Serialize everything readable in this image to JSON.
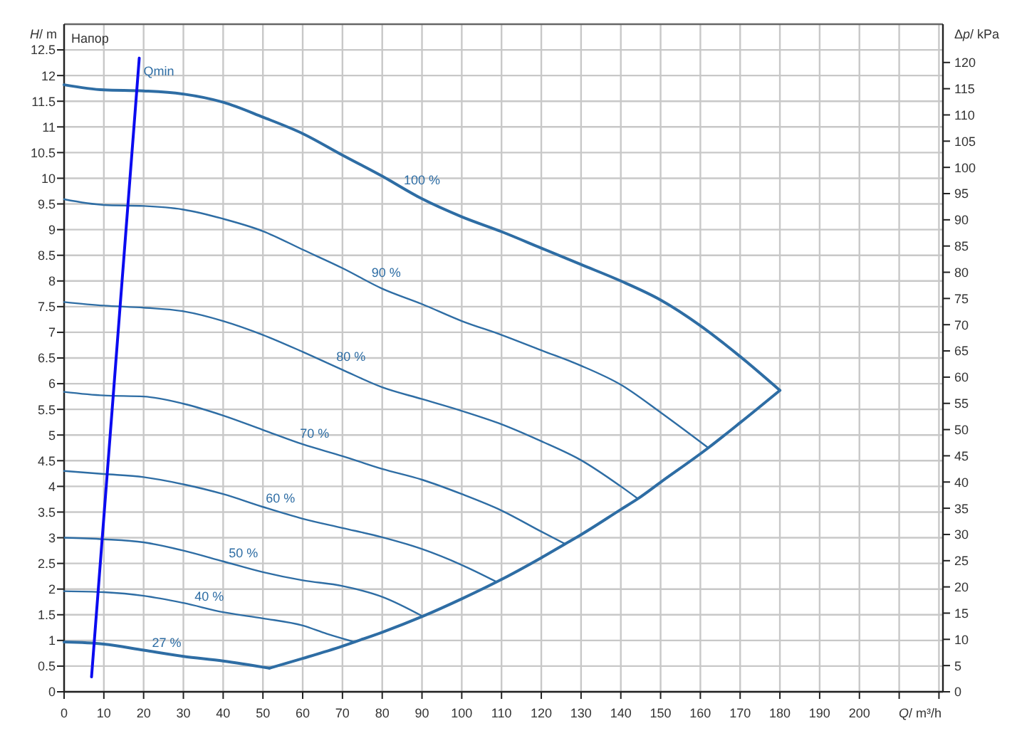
{
  "chart_data": {
    "type": "line",
    "xlabel": "Q/ m³/h",
    "ylabel": "H/ m",
    "y2label": "Δp/ kPa",
    "annotations": [
      "Напор"
    ],
    "xlim": [
      0,
      221
    ],
    "xticks": [
      0,
      10,
      20,
      30,
      40,
      50,
      60,
      70,
      80,
      90,
      100,
      110,
      120,
      130,
      140,
      150,
      160,
      170,
      180,
      190,
      200,
      {
        "value": 210,
        "label": null
      },
      {
        "value": 220,
        "label": null
      }
    ],
    "ylim": [
      0,
      13
    ],
    "yticks": [
      0,
      0.5,
      1,
      1.5,
      2,
      2.5,
      3,
      3.5,
      4,
      4.5,
      5,
      5.5,
      6,
      6.5,
      7,
      7.5,
      8,
      8.5,
      9,
      9.5,
      10,
      10.5,
      11,
      11.5,
      12,
      12.5
    ],
    "y2lim": [
      0,
      127.3
    ],
    "y2ticks": [
      0,
      5,
      10,
      15,
      20,
      25,
      30,
      35,
      40,
      45,
      50,
      55,
      60,
      65,
      70,
      75,
      80,
      85,
      90,
      95,
      100,
      105,
      110,
      115,
      120
    ],
    "grid": true,
    "series": [
      {
        "name": "100 %",
        "color": "#2e6da4",
        "x": [
          0,
          10,
          20,
          30,
          40,
          50,
          60,
          70,
          80,
          90,
          100,
          110,
          120,
          130,
          140,
          150,
          160,
          170,
          180
        ],
        "values": [
          11.82,
          11.72,
          11.7,
          11.64,
          11.48,
          11.19,
          10.87,
          10.45,
          10.04,
          9.6,
          9.25,
          8.96,
          8.64,
          8.32,
          8.0,
          7.63,
          7.13,
          6.53,
          5.87
        ]
      },
      {
        "name": "90 %",
        "color": "#2e6da4",
        "x": [
          0,
          10,
          20,
          30,
          40,
          50,
          60,
          70,
          80,
          90,
          100,
          110,
          120,
          130,
          140,
          150,
          162
        ],
        "values": [
          9.59,
          9.48,
          9.46,
          9.39,
          9.21,
          8.97,
          8.61,
          8.25,
          7.85,
          7.55,
          7.22,
          6.95,
          6.65,
          6.35,
          5.98,
          5.44,
          4.75
        ]
      },
      {
        "name": "80 %",
        "color": "#2e6da4",
        "x": [
          0,
          10,
          20,
          30,
          40,
          50,
          60,
          70,
          80,
          90,
          100,
          110,
          120,
          130,
          140,
          144.3
        ],
        "values": [
          7.59,
          7.52,
          7.48,
          7.41,
          7.22,
          6.95,
          6.62,
          6.27,
          5.93,
          5.7,
          5.47,
          5.21,
          4.88,
          4.51,
          4.0,
          3.76
        ]
      },
      {
        "name": "70 %",
        "color": "#2e6da4",
        "x": [
          0,
          10,
          20,
          30,
          40,
          50,
          60,
          70,
          80,
          90,
          100,
          110,
          120,
          126
        ],
        "values": [
          5.84,
          5.77,
          5.75,
          5.61,
          5.38,
          5.1,
          4.82,
          4.59,
          4.34,
          4.13,
          3.85,
          3.53,
          3.12,
          2.88
        ]
      },
      {
        "name": "60 %",
        "color": "#2e6da4",
        "x": [
          0,
          10,
          20,
          30,
          40,
          50,
          60,
          70,
          80,
          90,
          100,
          108.8
        ],
        "values": [
          4.3,
          4.24,
          4.18,
          4.04,
          3.85,
          3.6,
          3.37,
          3.19,
          3.01,
          2.78,
          2.47,
          2.14
        ]
      },
      {
        "name": "50 %",
        "color": "#2e6da4",
        "x": [
          0,
          10,
          20,
          30,
          40,
          50,
          60,
          70,
          80,
          90.2
        ],
        "values": [
          3.0,
          2.97,
          2.91,
          2.75,
          2.54,
          2.33,
          2.17,
          2.06,
          1.85,
          1.47
        ]
      },
      {
        "name": "40 %",
        "color": "#2e6da4",
        "x": [
          0,
          10,
          20,
          30,
          40,
          50,
          60,
          66,
          73
        ],
        "values": [
          1.96,
          1.94,
          1.87,
          1.73,
          1.55,
          1.43,
          1.29,
          1.13,
          0.97
        ]
      },
      {
        "name": "27 %",
        "color": "#2e6da4",
        "x": [
          0,
          10,
          20,
          30,
          40,
          51.6
        ],
        "values": [
          0.97,
          0.93,
          0.81,
          0.69,
          0.6,
          0.46
        ]
      },
      {
        "color": "#2e6da4",
        "x": [
          51.6,
          60,
          70,
          73,
          80,
          90.2,
          100,
          108.8,
          120,
          126,
          130,
          140,
          144.3,
          150,
          162,
          170,
          180
        ],
        "values": [
          0.46,
          0.65,
          0.89,
          0.97,
          1.16,
          1.47,
          1.81,
          2.14,
          2.61,
          2.88,
          3.06,
          3.55,
          3.76,
          4.08,
          4.75,
          5.24,
          5.87
        ]
      },
      {
        "name": "Qmin",
        "color": "#0b0bf0",
        "x": [
          6.9,
          18.9
        ],
        "values": [
          0.29,
          12.34
        ]
      }
    ]
  }
}
